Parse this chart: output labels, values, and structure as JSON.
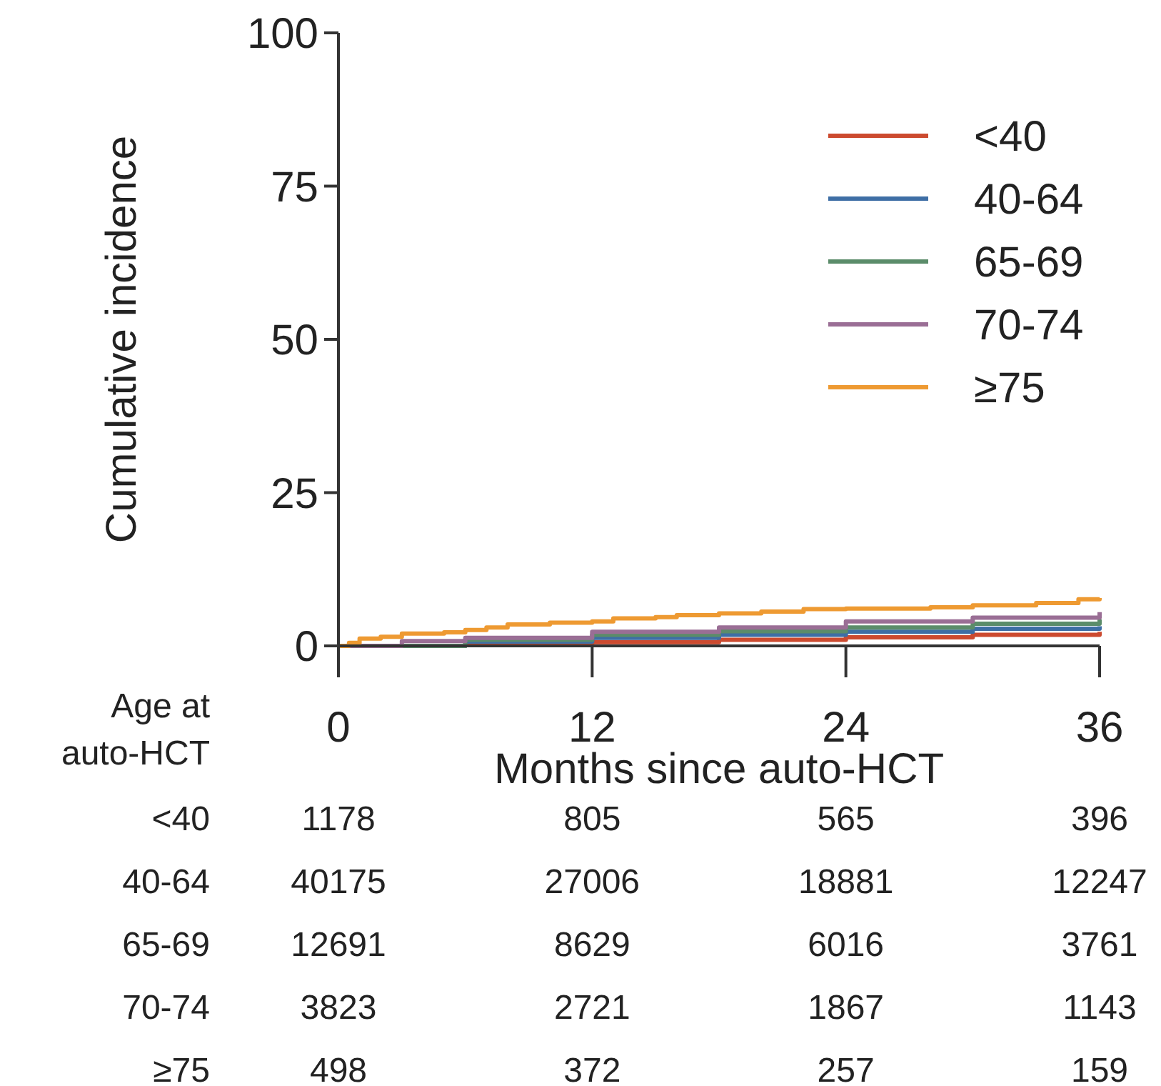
{
  "chart_data": {
    "type": "step",
    "xlabel": "Months since auto-HCT",
    "ylabel": "Cumulative incidence",
    "xlim": [
      0,
      36
    ],
    "xticks": [
      0,
      12,
      24,
      36
    ],
    "ylim": [
      0,
      100
    ],
    "yticks": [
      0,
      25,
      50,
      75,
      100
    ],
    "legend": "top right",
    "grid": false,
    "series": [
      {
        "name": "<40",
        "color": "#cc4a2f",
        "x": [
          0,
          6,
          12,
          18,
          24,
          30,
          36
        ],
        "values": [
          0,
          0.3,
          0.6,
          1.0,
          1.4,
          1.8,
          2.3
        ]
      },
      {
        "name": "40-64",
        "color": "#3e6ea5",
        "x": [
          0,
          6,
          12,
          18,
          24,
          30,
          36
        ],
        "values": [
          0,
          0.7,
          1.3,
          1.8,
          2.3,
          2.8,
          3.2
        ]
      },
      {
        "name": "65-69",
        "color": "#5b8c6a",
        "x": [
          0,
          6,
          12,
          18,
          24,
          30,
          36
        ],
        "values": [
          0,
          1.0,
          1.8,
          2.4,
          3.0,
          3.6,
          4.3
        ]
      },
      {
        "name": "70-74",
        "color": "#9a6e95",
        "x": [
          0,
          3,
          6,
          12,
          18,
          24,
          30,
          36
        ],
        "values": [
          0,
          0.8,
          1.3,
          2.3,
          3.0,
          4.0,
          4.6,
          5.5
        ]
      },
      {
        "name": "≥75",
        "color": "#ee9a32",
        "x": [
          0,
          0.5,
          1,
          2,
          3,
          5,
          6,
          7,
          8,
          10,
          12,
          13,
          15,
          16,
          18,
          20,
          22,
          24,
          28,
          30,
          33,
          35,
          36
        ],
        "values": [
          0,
          0.5,
          1.2,
          1.5,
          2.0,
          2.2,
          2.6,
          3.0,
          3.5,
          3.8,
          4.0,
          4.5,
          4.7,
          5.0,
          5.3,
          5.6,
          6.0,
          6.1,
          6.3,
          6.6,
          7.0,
          7.6,
          7.8
        ]
      }
    ],
    "annotations": [
      "Age at auto-HCT",
      "<40",
      "1178",
      "805",
      "565",
      "396",
      "40-64",
      "40175",
      "27006",
      "18881",
      "12247",
      "65-69",
      "12691",
      "8629",
      "6016",
      "3761",
      "70-74",
      "3823",
      "2721",
      "1867",
      "1143",
      "≥75",
      "498",
      "372",
      "257",
      "159"
    ]
  }
}
